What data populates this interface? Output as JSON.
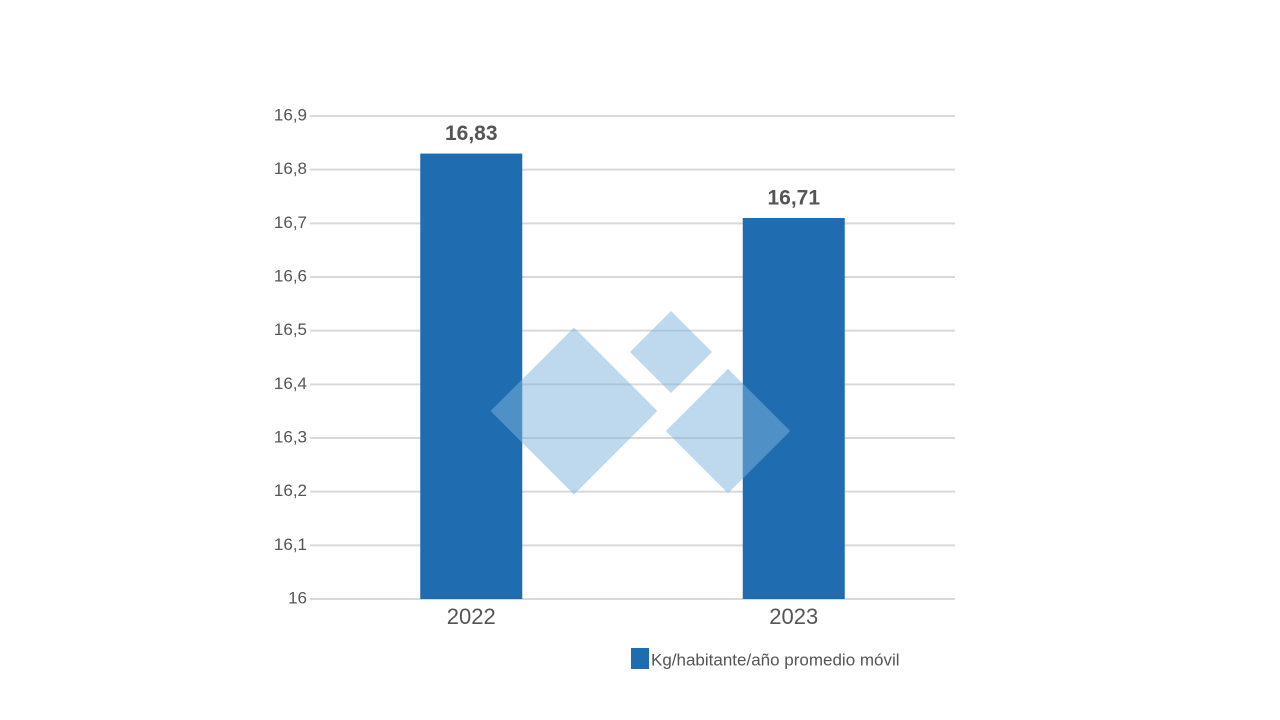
{
  "chart_data": {
    "type": "bar",
    "categories": [
      "2022",
      "2023"
    ],
    "series": [
      {
        "name": "Kg/habitante/año promedio móvil",
        "color": "#1f6cb0",
        "values": [
          16.83,
          16.71
        ],
        "value_labels": [
          "16,83",
          "16,71"
        ]
      }
    ],
    "ylim": [
      16,
      16.9
    ],
    "yticks": [
      16,
      {
        "value": 16.1,
        "label": "16,1"
      },
      {
        "value": 16.2,
        "label": "16,2"
      },
      {
        "value": 16.3,
        "label": "16,3"
      },
      {
        "value": 16.4,
        "label": "16,4"
      },
      {
        "value": 16.5,
        "label": "16,5"
      },
      {
        "value": 16.6,
        "label": "16,6"
      },
      {
        "value": 16.7,
        "label": "16,7"
      },
      {
        "value": 16.8,
        "label": "16,8"
      },
      {
        "value": 16.9,
        "label": "16,9"
      }
    ],
    "grid": true
  }
}
